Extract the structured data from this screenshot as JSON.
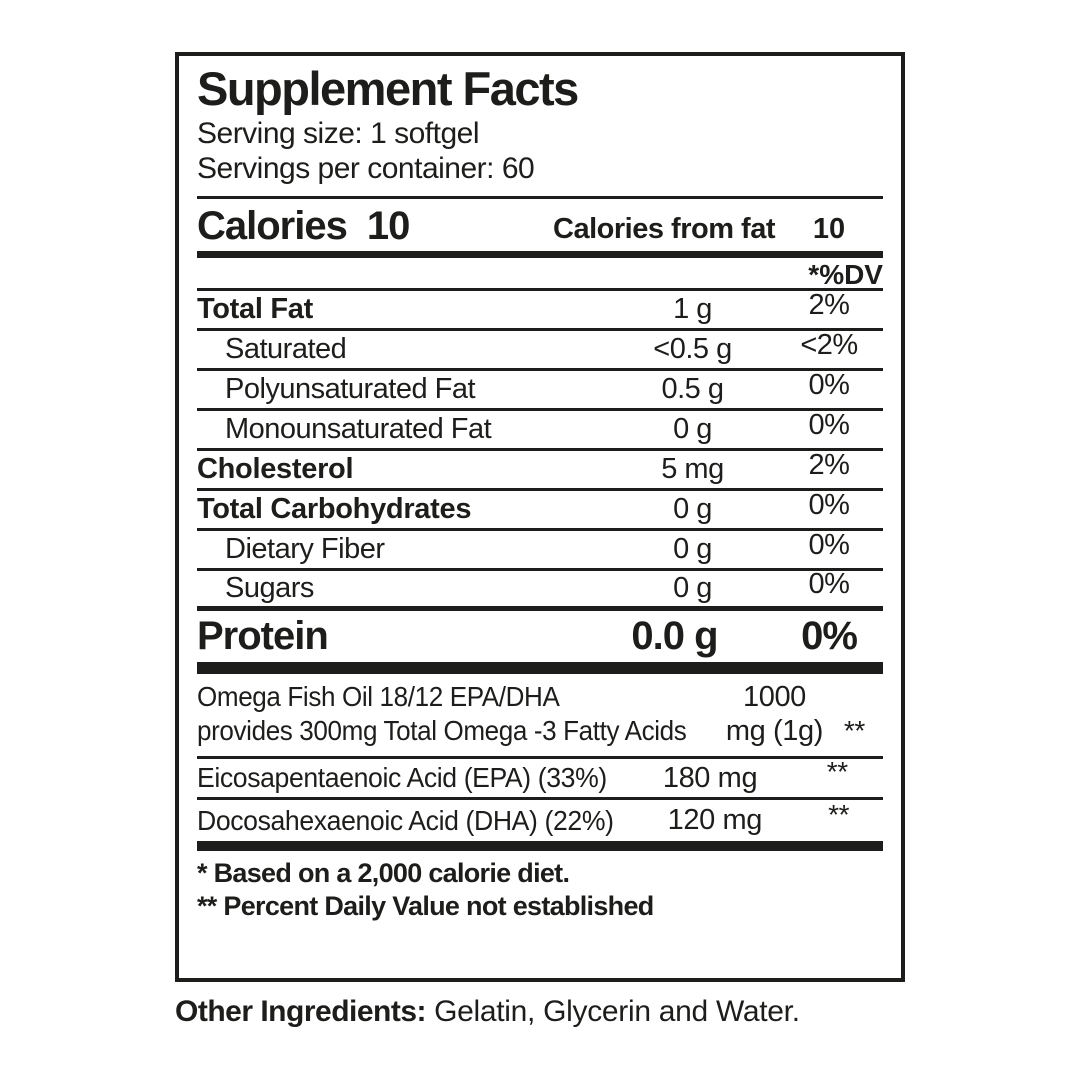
{
  "colors": {
    "ink": "#1d1d1b",
    "background": "#ffffff"
  },
  "label": {
    "title": "Supplement Facts",
    "serving_size": "Serving size: 1 softgel",
    "servings_per_container": "Servings per container: 60",
    "calories": {
      "label": "Calories",
      "value": "10",
      "from_fat_label": "Calories from fat",
      "from_fat_value": "10"
    },
    "dv_header": "*%DV",
    "rows": [
      {
        "name": "Total Fat",
        "amount": "1 g",
        "dv": "2%"
      },
      {
        "name": "Saturated",
        "amount": "<0.5 g",
        "dv": "<2%"
      },
      {
        "name": "Polyunsaturated Fat",
        "amount": "0.5 g",
        "dv": "0%"
      },
      {
        "name": "Monounsaturated Fat",
        "amount": "0 g",
        "dv": "0%"
      },
      {
        "name": "Cholesterol",
        "amount": "5 mg",
        "dv": "2%"
      },
      {
        "name": "Total Carbohydrates",
        "amount": "0 g",
        "dv": "0%"
      },
      {
        "name": "Dietary Fiber",
        "amount": "0 g",
        "dv": "0%"
      },
      {
        "name": "Sugars",
        "amount": "0 g",
        "dv": "0%"
      }
    ],
    "protein": {
      "name": "Protein",
      "amount": "0.0 g",
      "dv": "0%"
    },
    "supplement_rows": [
      {
        "name_line1": "Omega Fish Oil 18/12 EPA/DHA",
        "name_line2": "provides 300mg Total Omega -3 Fatty Acids",
        "amount": "1000 mg (1g)",
        "dv": "**"
      },
      {
        "name": "Eicosapentaenoic Acid (EPA) (33%)",
        "amount": "180 mg",
        "dv": "**"
      },
      {
        "name": "Docosahexaenoic Acid (DHA) (22%)",
        "amount": "120 mg",
        "dv": "**"
      }
    ],
    "footnotes": [
      "* Based on a 2,000 calorie diet.",
      "** Percent Daily Value not established"
    ],
    "other_ingredients": {
      "label": "Other Ingredients:",
      "text": "Gelatin, Glycerin and Water."
    }
  }
}
